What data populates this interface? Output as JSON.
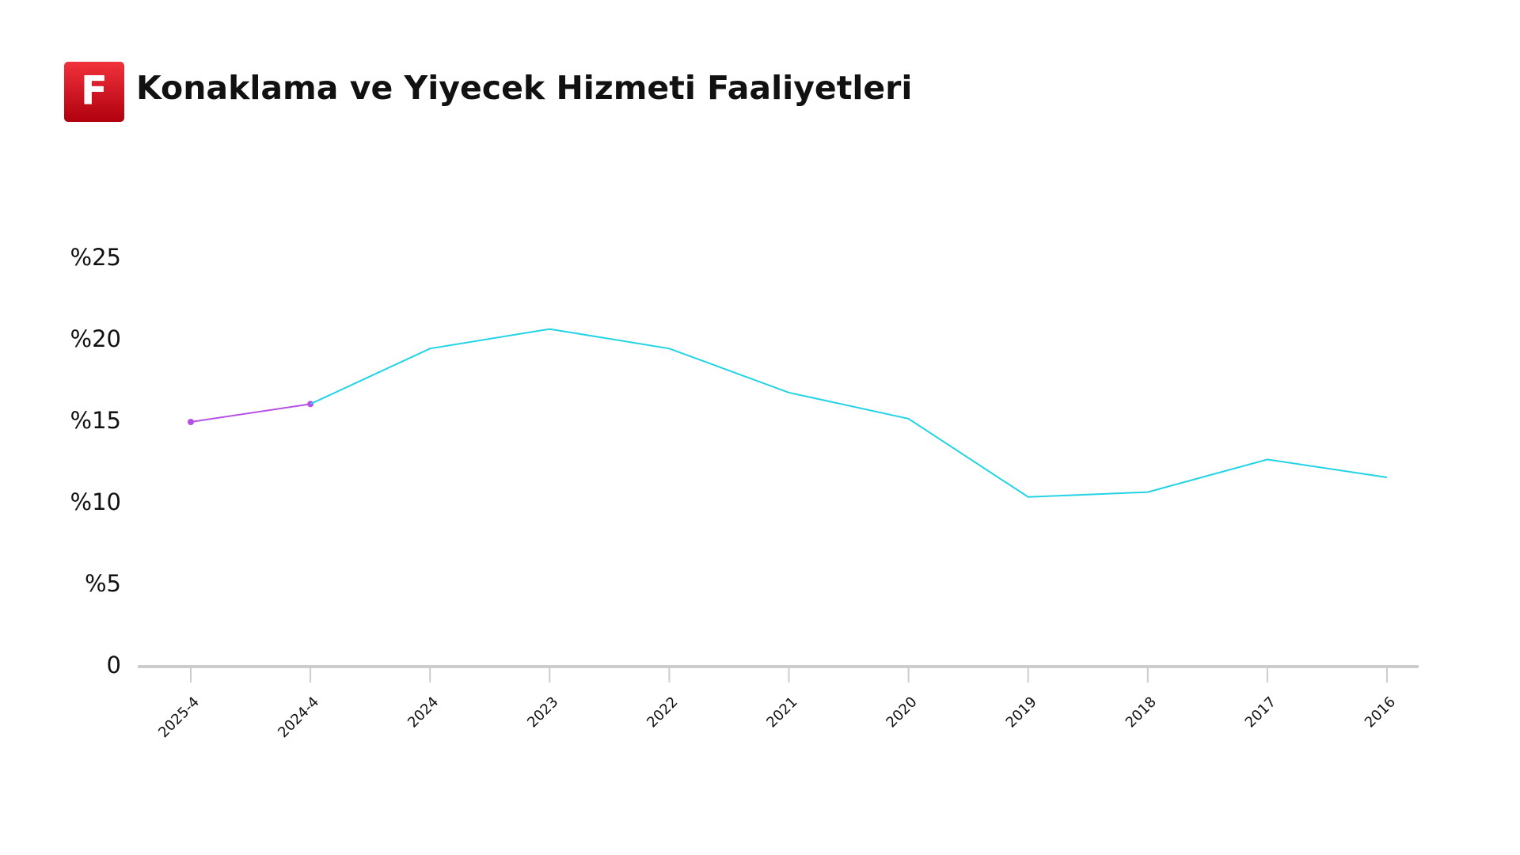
{
  "logo": "F",
  "chart_data": {
    "type": "line",
    "title": "Konaklama ve Yiyecek Hizmeti Faaliyetleri",
    "categories": [
      "2025-4",
      "2024-4",
      "2024",
      "2023",
      "2022",
      "2021",
      "2020",
      "2019",
      "2018",
      "2017",
      "2016"
    ],
    "series": [
      {
        "color": "#b84fe6",
        "markers": true,
        "values": [
          15.0,
          16.1,
          null,
          null,
          null,
          null,
          null,
          null,
          null,
          null,
          null
        ]
      },
      {
        "color": "#22d3e6",
        "markers": false,
        "values": [
          null,
          16.1,
          19.5,
          20.7,
          19.5,
          16.8,
          15.2,
          10.4,
          10.7,
          12.7,
          11.6
        ]
      }
    ],
    "ylim": [
      0,
      25
    ],
    "yticks": [
      0,
      {
        "value": 5,
        "label": "%5"
      },
      {
        "value": 10,
        "label": "%10"
      },
      {
        "value": 15,
        "label": "%15"
      },
      {
        "value": 20,
        "label": "%20"
      },
      {
        "value": 25,
        "label": "%25"
      }
    ],
    "grid": false
  }
}
